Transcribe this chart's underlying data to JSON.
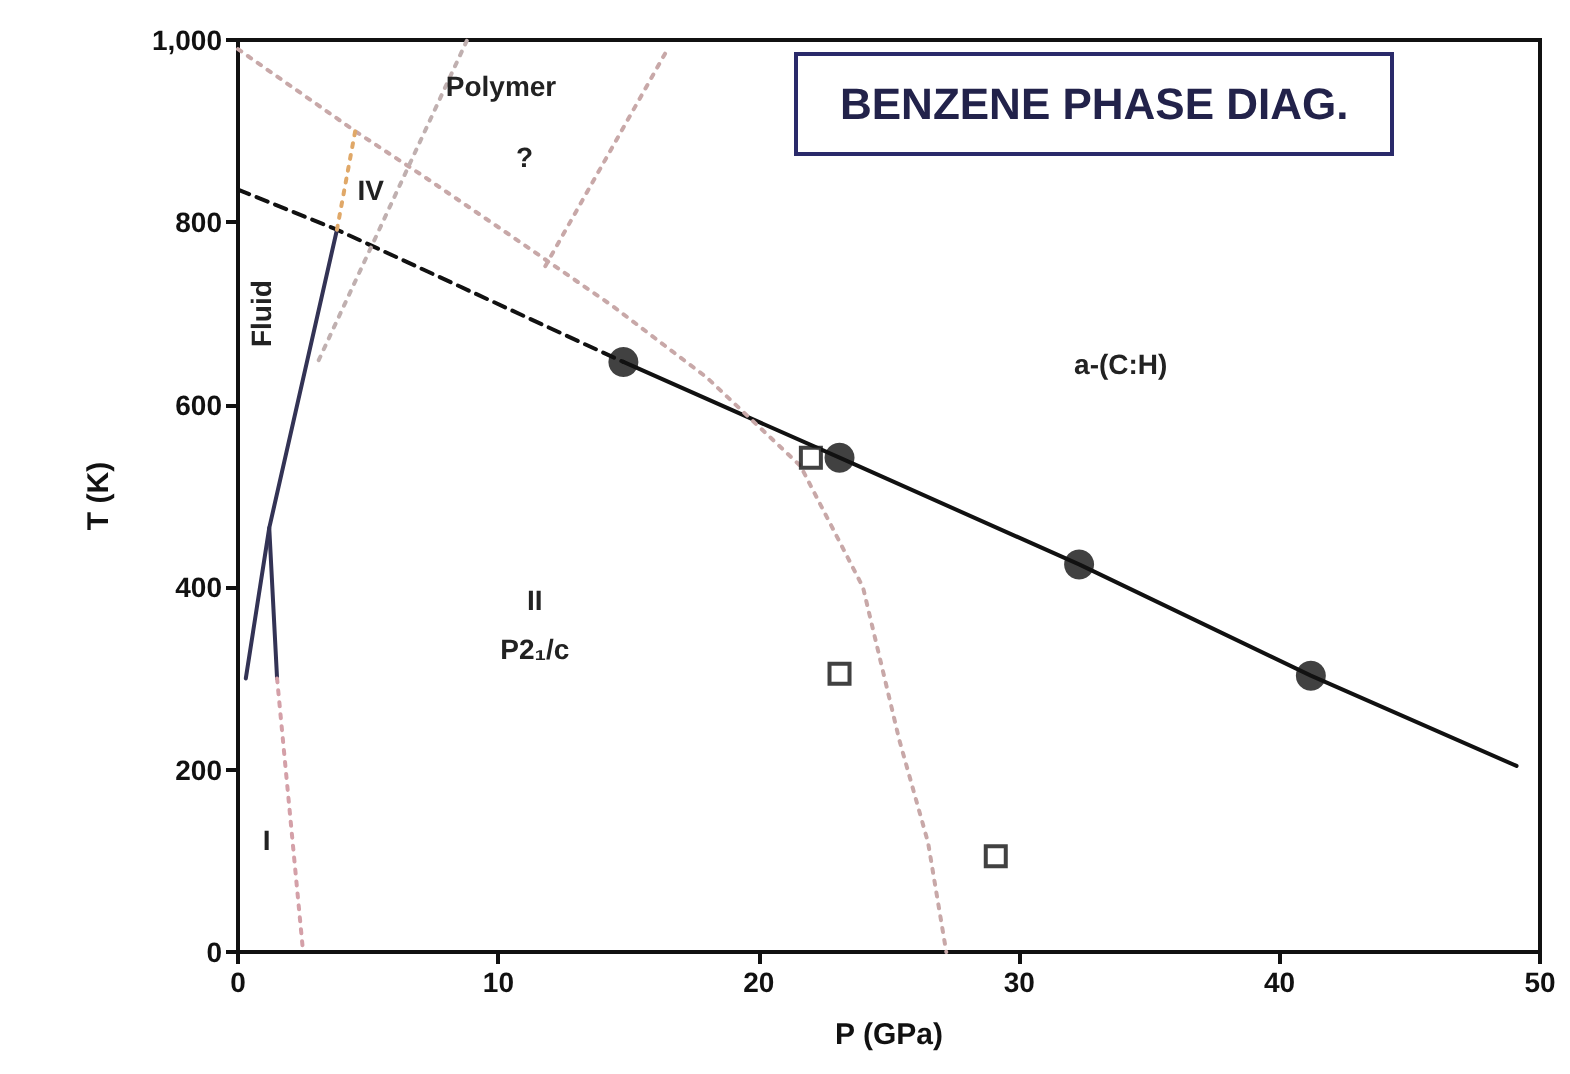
{
  "chart_data": {
    "type": "line",
    "title": "BENZENE PHASE DIAG.",
    "xlabel": "P (GPa)",
    "ylabel": "T (K)",
    "xlim": [
      0,
      50
    ],
    "xticks": [
      0,
      10,
      20,
      30,
      40,
      50
    ],
    "ylim": [
      0,
      1000
    ],
    "yticks": [
      0,
      200,
      400,
      600,
      {
        "value": 1000,
        "label": "1,000"
      },
      800
    ],
    "grid": false,
    "series": [
      {
        "type": "line",
        "color": "#111111",
        "line_style": "dashed",
        "marker": "none",
        "x": [
          0,
          3.8,
          14.8
        ],
        "values": [
          836,
          792,
          647
        ]
      },
      {
        "type": "line",
        "color": "#111111",
        "line_style": "solid",
        "marker": "none",
        "x": [
          14.8,
          23.1,
          32.3,
          41.2,
          49.1
        ],
        "values": [
          647,
          542,
          425,
          303,
          204
        ]
      },
      {
        "type": "line",
        "color": "#333355",
        "line_style": "solid",
        "marker": "none",
        "x": [
          0.3,
          1.2,
          3.8
        ],
        "values": [
          300,
          465,
          792
        ]
      },
      {
        "type": "line",
        "color": "#333355",
        "line_style": "solid",
        "marker": "none",
        "x": [
          1.2,
          1.5
        ],
        "values": [
          465,
          300
        ]
      },
      {
        "type": "line",
        "color": "#d4a0a8",
        "line_style": "dotted",
        "marker": "none",
        "x": [
          1.5,
          2.0,
          2.5
        ],
        "values": [
          300,
          150,
          0
        ]
      },
      {
        "type": "line",
        "color": "#c8a8a8",
        "line_style": "dotted",
        "marker": "none",
        "x": [
          0,
          4.5,
          7,
          10.5,
          14.4,
          18,
          21.6,
          24,
          25.4,
          26.5,
          27.2
        ],
        "values": [
          990,
          900,
          853,
          785,
          708,
          630,
          533,
          400,
          232,
          120,
          0
        ]
      },
      {
        "type": "line",
        "color": "#c0b0b0",
        "line_style": "dotted",
        "marker": "none",
        "x": [
          3.1,
          8.8
        ],
        "values": [
          649,
          1000
        ]
      },
      {
        "type": "line",
        "color": "#c8a8a8",
        "line_style": "dotted",
        "marker": "none",
        "x": [
          11.8,
          16.4
        ],
        "values": [
          752,
          985
        ]
      },
      {
        "type": "line",
        "color": "#e0a868",
        "line_style": "dotted",
        "marker": "none",
        "x": [
          3.8,
          4.5
        ],
        "values": [
          792,
          900
        ]
      },
      {
        "type": "scatter",
        "color": "#111111",
        "marker": "circle",
        "x": [
          14.8,
          23.1,
          32.3,
          41.2
        ],
        "values": [
          647,
          542,
          425,
          303
        ]
      },
      {
        "type": "scatter",
        "color": "#111111",
        "marker": "square",
        "x": [
          22.0,
          23.1,
          29.1
        ],
        "values": [
          542,
          305,
          105
        ]
      }
    ],
    "annotations": [
      "Polymer",
      "?",
      "IV",
      "Fluid",
      "a-(C:H)",
      "II",
      "P2₁/c",
      "I"
    ]
  }
}
